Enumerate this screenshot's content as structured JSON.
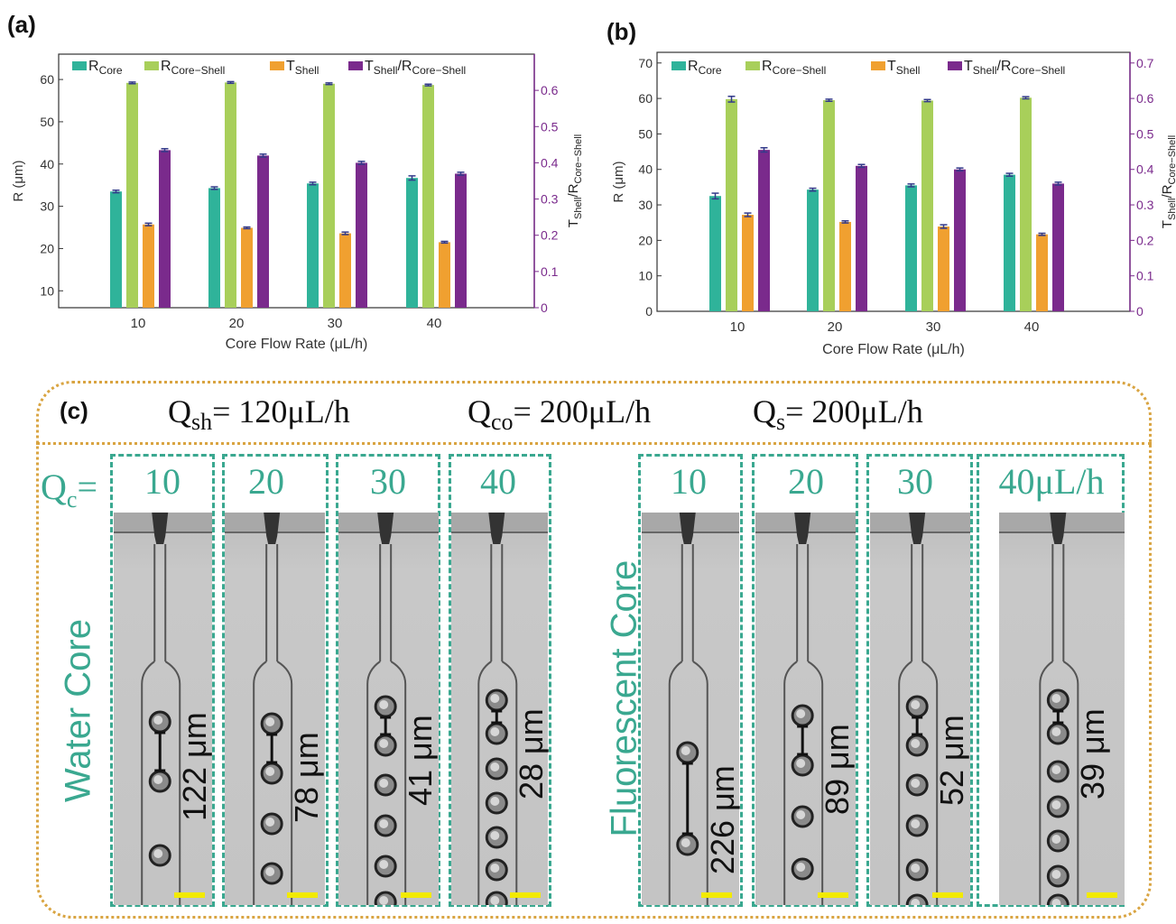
{
  "panel_labels": {
    "a": "(a)",
    "b": "(b)",
    "c": "(c)"
  },
  "legend_items": [
    {
      "name": "R",
      "sub": "Core",
      "color": "#2fb39a"
    },
    {
      "name": "R",
      "sub": "Core−Shell",
      "color": "#a8cf5a"
    },
    {
      "name": "T",
      "sub": "Shell",
      "color": "#f0a030"
    },
    {
      "name": "T",
      "sub": "Shell",
      "suffix": "/R",
      "sub2": "Core−Shell",
      "color": "#7a2a8c"
    }
  ],
  "chart_data": [
    {
      "type": "bar",
      "panel": "(a)",
      "xlabel": "Core Flow Rate (μL/h)",
      "ylabel": "R (μm)",
      "y2label": "TShell/RCore−Shell",
      "categories": [
        "10",
        "20",
        "30",
        "40"
      ],
      "ylim": [
        6,
        66
      ],
      "yticks": [
        10,
        20,
        30,
        40,
        50,
        60
      ],
      "y2lim": [
        0,
        0.7
      ],
      "y2ticks": [
        0,
        0.1,
        0.2,
        0.3,
        0.4,
        0.5,
        0.6
      ],
      "series": [
        {
          "name": "RCore",
          "axis": "left",
          "color": "#2fb39a",
          "values": [
            33.5,
            34.3,
            35.4,
            36.7
          ],
          "errors": [
            0.3,
            0.3,
            0.3,
            0.5
          ]
        },
        {
          "name": "RCore−Shell",
          "axis": "left",
          "color": "#a8cf5a",
          "values": [
            59.2,
            59.3,
            59.0,
            58.7
          ],
          "errors": [
            0.2,
            0.2,
            0.2,
            0.2
          ]
        },
        {
          "name": "TShell",
          "axis": "left",
          "color": "#f0a030",
          "values": [
            25.7,
            24.9,
            23.6,
            21.5
          ],
          "errors": [
            0.3,
            0.2,
            0.3,
            0.2
          ]
        },
        {
          "name": "TShell/RCore−Shell",
          "axis": "right",
          "color": "#7a2a8c",
          "values": [
            0.435,
            0.42,
            0.4,
            0.37
          ],
          "errors": [
            0.004,
            0.004,
            0.004,
            0.004
          ]
        }
      ],
      "legend": "top"
    },
    {
      "type": "bar",
      "panel": "(b)",
      "xlabel": "Core Flow Rate (μL/h)",
      "ylabel": "R (μm)",
      "y2label": "TShell/RCore−Shell",
      "categories": [
        "10",
        "20",
        "30",
        "40"
      ],
      "ylim": [
        0,
        73
      ],
      "yticks": [
        0,
        10,
        20,
        30,
        40,
        50,
        60,
        70
      ],
      "y2lim": [
        0,
        0.73
      ],
      "y2ticks": [
        0,
        0.1,
        0.2,
        0.3,
        0.4,
        0.5,
        0.6,
        0.7
      ],
      "series": [
        {
          "name": "RCore",
          "axis": "left",
          "color": "#2fb39a",
          "values": [
            32.5,
            34.3,
            35.5,
            38.5
          ],
          "errors": [
            0.8,
            0.4,
            0.4,
            0.4
          ]
        },
        {
          "name": "RCore−Shell",
          "axis": "left",
          "color": "#a8cf5a",
          "values": [
            59.8,
            59.5,
            59.4,
            60.2
          ],
          "errors": [
            0.8,
            0.3,
            0.3,
            0.3
          ]
        },
        {
          "name": "TShell",
          "axis": "left",
          "color": "#f0a030",
          "values": [
            27.2,
            25.2,
            23.9,
            21.7
          ],
          "errors": [
            0.5,
            0.3,
            0.5,
            0.3
          ]
        },
        {
          "name": "TShell/RCore−Shell",
          "axis": "right",
          "color": "#7a2a8c",
          "values": [
            0.455,
            0.41,
            0.4,
            0.36
          ],
          "errors": [
            0.006,
            0.004,
            0.004,
            0.004
          ]
        }
      ],
      "legend": "top"
    }
  ],
  "panel_c": {
    "conditions": [
      "Qsh= 120μL/h",
      "Qco= 200μL/h",
      "Qs= 200μL/h"
    ],
    "qc_label": "Qc=",
    "left_group_label": "Water Core",
    "right_group_label": "Fluorescent Core",
    "frames": [
      {
        "label": "10",
        "spacing": "122 μm"
      },
      {
        "label": "20",
        "spacing": "78 μm"
      },
      {
        "label": "30",
        "spacing": "41 μm"
      },
      {
        "label": "40",
        "spacing": "28 μm"
      },
      {
        "label": "10",
        "spacing": "226 μm"
      },
      {
        "label": "20",
        "spacing": "89 μm"
      },
      {
        "label": "30",
        "spacing": "52 μm"
      },
      {
        "label": "40μL/h",
        "spacing": "39 μm"
      }
    ],
    "scale_bar_color": "#f2ea00",
    "accent_color": "#3aa890",
    "border_color": "#d9a441"
  }
}
